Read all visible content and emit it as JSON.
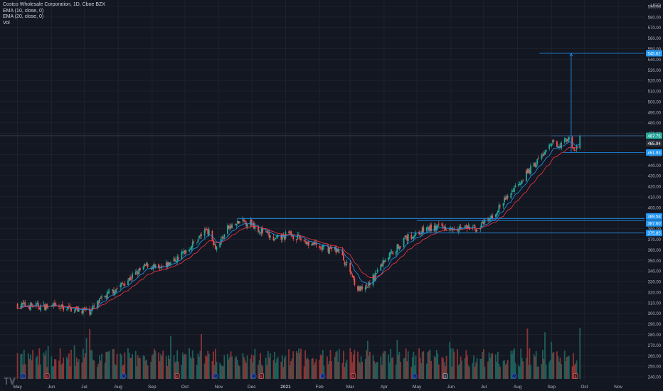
{
  "legend": {
    "symbol": "Costco Wholesale Corporation, 1D, Cboe BZX",
    "ema10": "EMA (10, close, 0)",
    "ema20": "EMA (20, close, 0)",
    "volume": "Vol"
  },
  "currency": "USD",
  "chart_data": {
    "type": "candlestick",
    "title": "Costco Wholesale Corporation, 1D, Cboe BZX",
    "y_axis": {
      "ticks": [
        240,
        250,
        260,
        270,
        280,
        290,
        300,
        310,
        320,
        330,
        340,
        350,
        360,
        370,
        380,
        390,
        400,
        410,
        420,
        430,
        440,
        450,
        460,
        470,
        480,
        490,
        500,
        510,
        520,
        530,
        540,
        550,
        560,
        570,
        580,
        590
      ],
      "range": [
        236,
        596
      ]
    },
    "x_axis": {
      "labels": [
        "May",
        "Jun",
        "Jul",
        "Aug",
        "Sep",
        "Oct",
        "Nov",
        "Dec",
        "2021",
        "Feb",
        "Mar",
        "Apr",
        "May",
        "Jun",
        "Jul",
        "Aug",
        "Sep",
        "Oct",
        "Nov"
      ]
    },
    "price_tags": [
      {
        "value": "545.62",
        "color": "#2196f3"
      },
      {
        "value": "467.75",
        "color": "#26a69a"
      },
      {
        "value": "465.94",
        "color": "#2a2e39"
      },
      {
        "value": "451.93",
        "color": "#2196f3"
      },
      {
        "value": "389.58",
        "color": "#2196f3"
      },
      {
        "value": "387.60",
        "color": "#2196f3"
      },
      {
        "value": "375.85",
        "color": "#2196f3"
      }
    ],
    "horizontal_levels": [
      545.62,
      467.75,
      451.93,
      389.58,
      387.6,
      375.85
    ],
    "anchors": [
      [
        "2020-05-01",
        308
      ],
      [
        "2020-06-15",
        305
      ],
      [
        "2020-07-06",
        302
      ],
      [
        "2020-07-20",
        316
      ],
      [
        "2020-08-03",
        326
      ],
      [
        "2020-08-28",
        346
      ],
      [
        "2020-09-08",
        341
      ],
      [
        "2020-09-24",
        352
      ],
      [
        "2020-10-09",
        366
      ],
      [
        "2020-10-21",
        380
      ],
      [
        "2020-10-30",
        362
      ],
      [
        "2020-11-09",
        380
      ],
      [
        "2020-11-20",
        386
      ],
      [
        "2020-11-30",
        386
      ],
      [
        "2020-12-07",
        380
      ],
      [
        "2020-12-22",
        369
      ],
      [
        "2021-01-05",
        375
      ],
      [
        "2021-01-15",
        370
      ],
      [
        "2021-02-01",
        362
      ],
      [
        "2021-02-18",
        360
      ],
      [
        "2021-03-01",
        340
      ],
      [
        "2021-03-08",
        323
      ],
      [
        "2021-03-15",
        322
      ],
      [
        "2021-04-01",
        350
      ],
      [
        "2021-04-20",
        370
      ],
      [
        "2021-05-10",
        380
      ],
      [
        "2021-06-01",
        382
      ],
      [
        "2021-06-25",
        380
      ],
      [
        "2021-07-08",
        390
      ],
      [
        "2021-07-30",
        420
      ],
      [
        "2021-08-20",
        445
      ],
      [
        "2021-09-02",
        460
      ],
      [
        "2021-09-10",
        460
      ],
      [
        "2021-09-16",
        466
      ],
      [
        "2021-09-22",
        452
      ],
      [
        "2021-09-27",
        466
      ]
    ],
    "markers": [
      {
        "label": "D",
        "date": "2020-05-06",
        "kind": "dividend"
      },
      {
        "label": "E",
        "date": "2020-05-28",
        "kind": "earnings"
      },
      {
        "label": "D",
        "date": "2020-08-06",
        "kind": "dividend"
      },
      {
        "label": "E",
        "date": "2020-09-24",
        "kind": "earnings"
      },
      {
        "label": "D",
        "date": "2020-10-29",
        "kind": "dividend"
      },
      {
        "label": "D",
        "date": "2020-12-03",
        "kind": "dividend"
      },
      {
        "label": "E",
        "date": "2020-12-10",
        "kind": "earnings"
      },
      {
        "label": "D",
        "date": "2021-02-04",
        "kind": "dividend"
      },
      {
        "label": "E",
        "date": "2021-03-04",
        "kind": "earnings"
      },
      {
        "label": "D",
        "date": "2021-04-29",
        "kind": "dividend"
      },
      {
        "label": "E",
        "date": "2021-05-27",
        "kind": "earnings"
      },
      {
        "label": "D",
        "date": "2021-07-29",
        "kind": "dividend"
      },
      {
        "label": "E",
        "date": "2021-09-23",
        "kind": "earnings"
      }
    ],
    "colors": {
      "up": "#26a69a",
      "down": "#ef5350",
      "ema10": "#2196f3",
      "ema20": "#f23645",
      "grid": "#1e222d",
      "level": "#2196f3",
      "bg": "#131722",
      "axis_text": "#b2b5be"
    }
  }
}
